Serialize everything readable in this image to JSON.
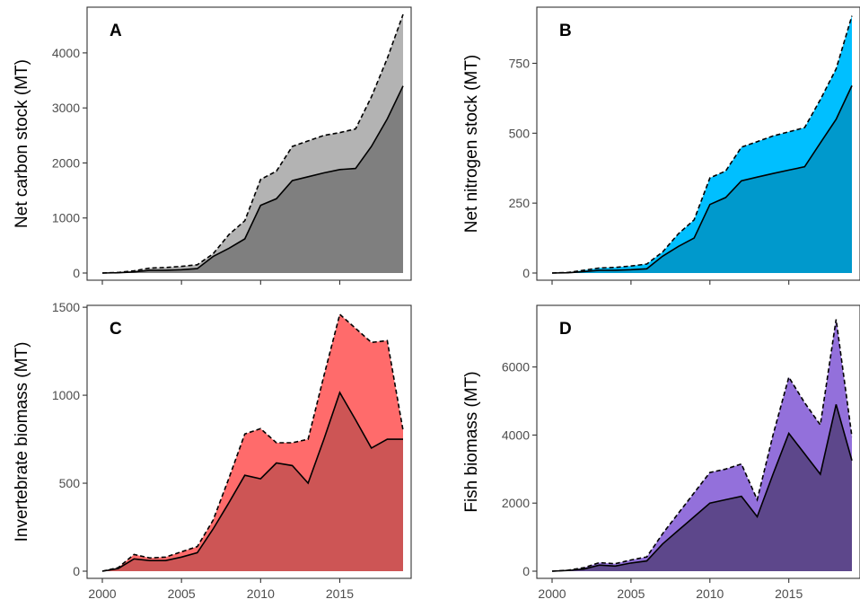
{
  "chart_data": [
    {
      "type": "area",
      "panel": "A",
      "ylabel": "Net carbon stock (MT)",
      "xlabel": "",
      "xlim": [
        2000,
        2019
      ],
      "ylim": [
        0,
        4700
      ],
      "x_ticks": [
        2000,
        2005,
        2010,
        2015
      ],
      "x_tick_labels_shown": false,
      "y_ticks": [
        0,
        1000,
        2000,
        3000,
        4000
      ],
      "grid": false,
      "colors": {
        "upper": "#b3b3b3",
        "lower": "#7f7f7f"
      },
      "x": [
        2000,
        2001,
        2002,
        2003,
        2004,
        2005,
        2006,
        2007,
        2008,
        2009,
        2010,
        2011,
        2012,
        2013,
        2014,
        2015,
        2016,
        2017,
        2018,
        2019
      ],
      "upper": [
        0,
        10,
        40,
        90,
        100,
        120,
        150,
        350,
        700,
        950,
        1700,
        1850,
        2300,
        2400,
        2500,
        2550,
        2620,
        3200,
        3900,
        4700
      ],
      "lower": [
        0,
        5,
        20,
        50,
        50,
        60,
        80,
        300,
        450,
        620,
        1230,
        1350,
        1680,
        1750,
        1820,
        1880,
        1900,
        2300,
        2800,
        3400
      ]
    },
    {
      "type": "area",
      "panel": "B",
      "ylabel": "Net nitrogen stock (MT)",
      "xlabel": "",
      "xlim": [
        2000,
        2019
      ],
      "ylim": [
        0,
        925
      ],
      "x_ticks": [
        2000,
        2005,
        2010,
        2015
      ],
      "x_tick_labels_shown": false,
      "y_ticks": [
        0,
        250,
        500,
        750
      ],
      "grid": false,
      "colors": {
        "upper": "#00bfff",
        "lower": "#0099cc"
      },
      "x": [
        2000,
        2001,
        2002,
        2003,
        2004,
        2005,
        2006,
        2007,
        2008,
        2009,
        2010,
        2011,
        2012,
        2013,
        2014,
        2015,
        2016,
        2017,
        2018,
        2019
      ],
      "upper": [
        0,
        2,
        10,
        18,
        20,
        25,
        32,
        75,
        140,
        190,
        340,
        365,
        450,
        470,
        490,
        505,
        520,
        620,
        730,
        920
      ],
      "lower": [
        0,
        1,
        5,
        10,
        10,
        12,
        15,
        60,
        95,
        125,
        245,
        270,
        330,
        343,
        356,
        368,
        380,
        465,
        550,
        670
      ]
    },
    {
      "type": "area",
      "panel": "C",
      "ylabel": "Invertebrate biomass (MT)",
      "xlabel": "",
      "xlim": [
        2000,
        2019
      ],
      "ylim": [
        0,
        1470
      ],
      "x_ticks": [
        2000,
        2005,
        2010,
        2015
      ],
      "x_tick_labels_shown": true,
      "y_ticks": [
        0,
        500,
        1000,
        1500
      ],
      "grid": false,
      "colors": {
        "upper": "#ff6b6b",
        "lower": "#cd5555"
      },
      "x": [
        2000,
        2001,
        2002,
        2003,
        2004,
        2005,
        2006,
        2007,
        2008,
        2009,
        2010,
        2011,
        2012,
        2013,
        2014,
        2015,
        2016,
        2017,
        2018,
        2019
      ],
      "upper": [
        0,
        20,
        95,
        75,
        80,
        110,
        140,
        290,
        530,
        780,
        810,
        730,
        730,
        750,
        1110,
        1460,
        1380,
        1300,
        1310,
        800
      ],
      "lower": [
        0,
        15,
        70,
        60,
        60,
        80,
        105,
        240,
        390,
        545,
        525,
        615,
        600,
        500,
        750,
        1015,
        860,
        700,
        750,
        750
      ]
    },
    {
      "type": "area",
      "panel": "D",
      "ylabel": "Fish biomass (MT)",
      "xlabel": "",
      "xlim": [
        2000,
        2019
      ],
      "ylim": [
        0,
        7600
      ],
      "x_ticks": [
        2000,
        2005,
        2010,
        2015
      ],
      "x_tick_labels_shown": true,
      "y_ticks": [
        0,
        2000,
        4000,
        6000
      ],
      "grid": false,
      "colors": {
        "upper": "#9370db",
        "lower": "#5d478b"
      },
      "x": [
        2000,
        2001,
        2002,
        2003,
        2004,
        2005,
        2006,
        2007,
        2008,
        2009,
        2010,
        2011,
        2012,
        2013,
        2014,
        2015,
        2016,
        2017,
        2018,
        2019
      ],
      "upper": [
        0,
        30,
        100,
        250,
        220,
        330,
        420,
        1100,
        1700,
        2300,
        2900,
        3000,
        3150,
        2100,
        4000,
        5700,
        4950,
        4300,
        7400,
        3950
      ],
      "lower": [
        0,
        20,
        60,
        180,
        150,
        240,
        300,
        800,
        1200,
        1600,
        2000,
        2100,
        2200,
        1600,
        2850,
        4050,
        3450,
        2850,
        4900,
        3250
      ]
    }
  ]
}
